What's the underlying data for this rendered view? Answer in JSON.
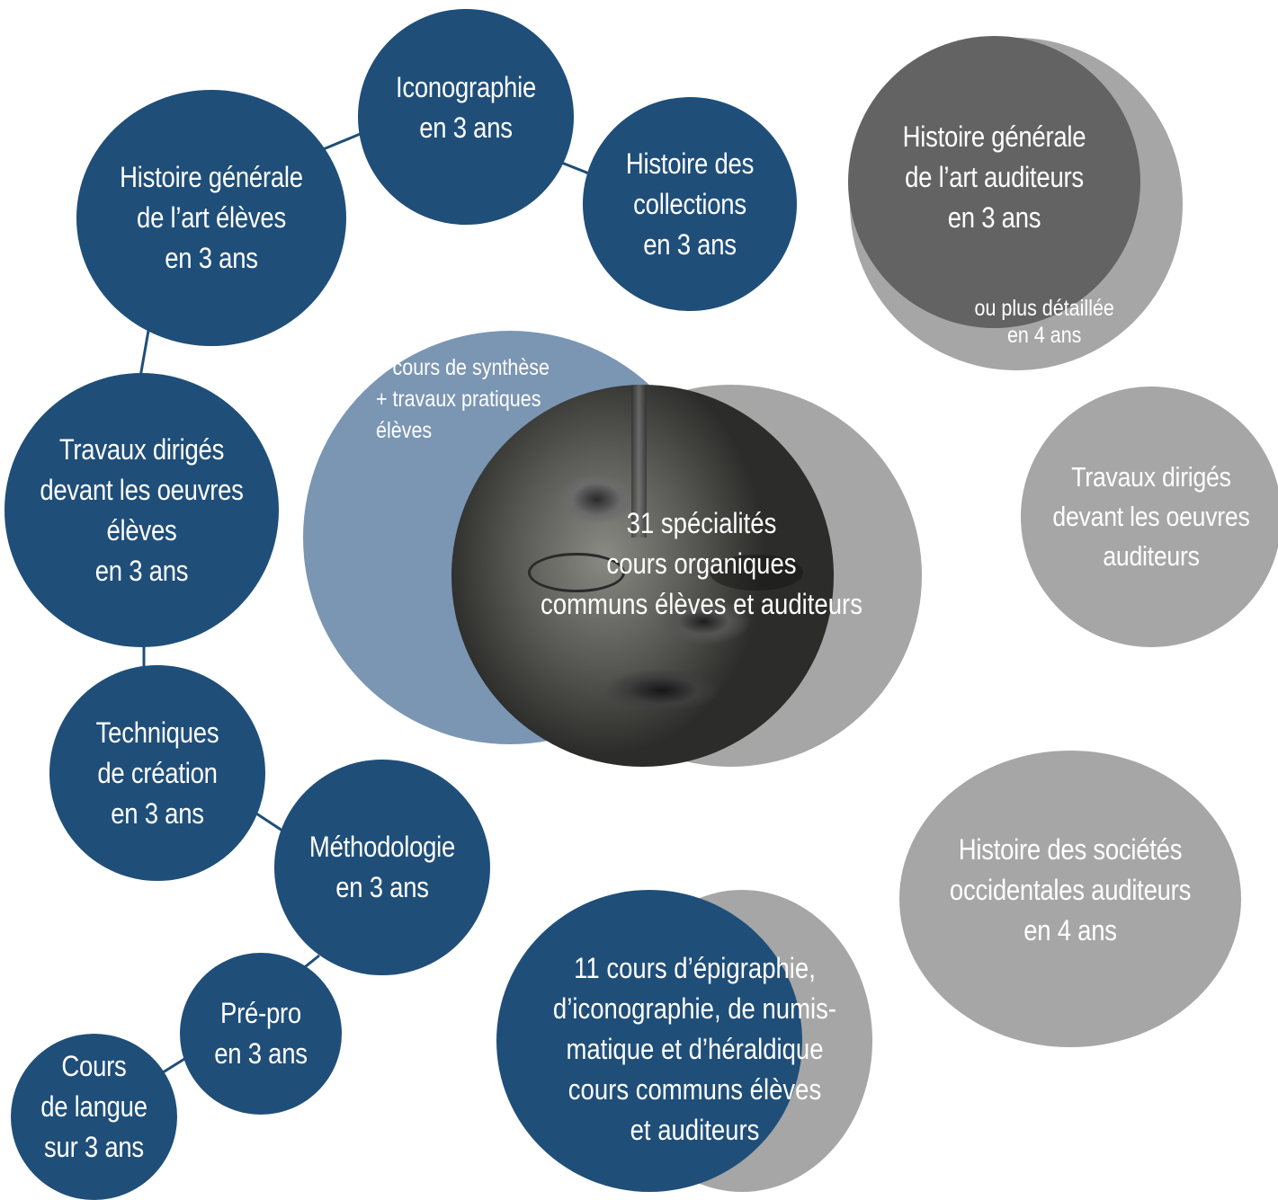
{
  "colors": {
    "navy": "#1f4e79",
    "gray": "#a6a6a6",
    "dark_gray": "#636363",
    "light_blue": "#7b96b3",
    "connector": "#1f4e79",
    "text": "#ffffff"
  },
  "eleves": {
    "histoire_generale": "Histoire générale\nde l’art élèves\nen 3 ans",
    "iconographie": "Iconographie\nen 3 ans",
    "histoire_collections": "Histoire des\ncollections\nen 3 ans",
    "travaux_diriges": "Travaux dirigés\ndevant les oeuvres\nélèves\nen 3 ans",
    "techniques": "Techniques\nde création\nen 3 ans",
    "methodologie": "Méthodologie\nen 3 ans",
    "pre_pro": "Pré-pro\nen 3 ans",
    "cours_langue": "Cours\nde langue\nsur 3 ans"
  },
  "auditeurs": {
    "histoire_generale": "Histoire générale\nde l’art auditeurs\nen 3 ans",
    "histoire_detaillee": "ou plus détaillée\nen 4 ans",
    "travaux_diriges": "Travaux dirigés\ndevant les oeuvres\nauditeurs",
    "histoire_societes": "Histoire des sociétés\noccidentales auditeurs\nen 4 ans"
  },
  "communs": {
    "synthese": "+ cours de synthèse\n+ travaux pratiques\n  élèves",
    "specialites": "31 spécialités\ncours organiques\ncommuns élèves et auditeurs",
    "epigraphie": "11 cours d’épigraphie,\nd’iconographie, de numis-\nmatique et d’héraldique\ncours communs élèves\net auditeurs"
  }
}
